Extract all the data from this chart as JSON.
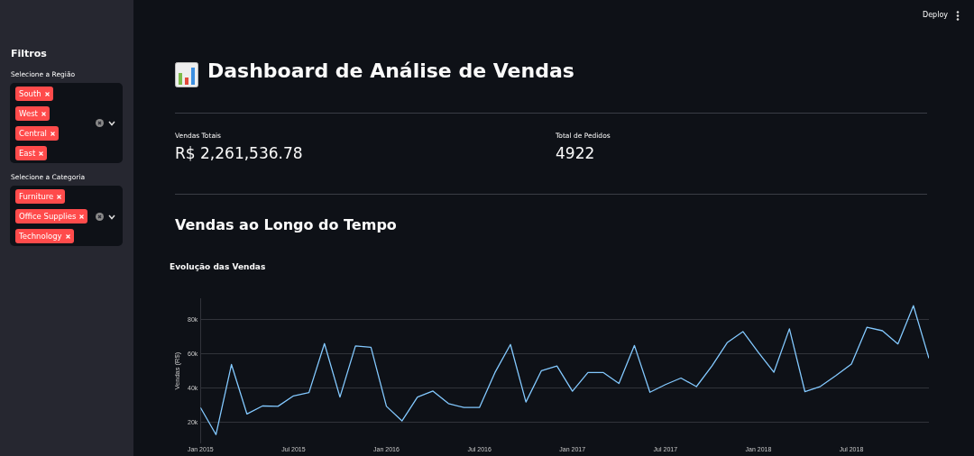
{
  "chart_data": {
    "type": "line",
    "title": "Evolução das Vendas",
    "subtitle": "Vendas ao Longo do Tempo",
    "ylabel": "Vendas (R$)",
    "annotations": [
      "Dashboard de Análise de Vendas",
      "Vendas Totais",
      "R$ 2,261,536.78",
      "Total de Pedidos",
      "4922",
      "Filtros",
      "Selecione a Região",
      "South",
      "West",
      "Central",
      "East",
      "Selecione a Categoria",
      "Furniture",
      "Office Supplies",
      "Technology",
      "Deploy"
    ],
    "x": [
      "2015-01",
      "2015-02",
      "2015-03",
      "2015-04",
      "2015-05",
      "2015-06",
      "2015-07",
      "2015-08",
      "2015-09",
      "2015-10",
      "2015-11",
      "2015-12",
      "2016-01",
      "2016-02",
      "2016-03",
      "2016-04",
      "2016-05",
      "2016-06",
      "2016-07",
      "2016-08",
      "2016-09",
      "2016-10",
      "2016-11",
      "2016-12",
      "2017-01",
      "2017-02",
      "2017-03",
      "2017-04",
      "2017-05",
      "2017-06",
      "2017-07",
      "2017-08",
      "2017-09",
      "2017-10",
      "2017-11",
      "2017-12",
      "2018-01",
      "2018-02",
      "2018-03",
      "2018-04",
      "2018-05",
      "2018-06",
      "2018-07",
      "2018-08",
      "2018-09",
      "2018-10",
      "2018-11",
      "2018-12"
    ],
    "series": [
      {
        "color": "#83c9ff",
        "values": [
          28700,
          12900,
          53800,
          24900,
          29600,
          29400,
          35500,
          37400,
          66000,
          34800,
          64600,
          63800,
          29400,
          20900,
          34800,
          38300,
          31000,
          28700,
          28700,
          49100,
          65500,
          31900,
          50200,
          52900,
          38200,
          49100,
          49100,
          42700,
          64900,
          37600,
          42100,
          45900,
          40900,
          52900,
          66700,
          73000,
          60800,
          49300,
          74600,
          38000,
          41000,
          47300,
          54100,
          75500,
          73500,
          65800,
          88100,
          57400
        ]
      }
    ],
    "xlim": [
      "2015-01",
      "2018-12"
    ],
    "xticks": [
      {
        "value": "2015-01",
        "label": "Jan 2015"
      },
      {
        "value": "2015-07",
        "label": "Jul 2015"
      },
      {
        "value": "2016-01",
        "label": "Jan 2016"
      },
      {
        "value": "2016-07",
        "label": "Jul 2016"
      },
      {
        "value": "2017-01",
        "label": "Jan 2017"
      },
      {
        "value": "2017-07",
        "label": "Jul 2017"
      },
      {
        "value": "2018-01",
        "label": "Jan 2018"
      },
      {
        "value": "2018-07",
        "label": "Jul 2018"
      }
    ],
    "ylim": [
      8000,
      92000
    ],
    "yticks": [
      {
        "value": 20000,
        "label": "20k"
      },
      {
        "value": 40000,
        "label": "40k"
      },
      {
        "value": 60000,
        "label": "60k"
      },
      {
        "value": 80000,
        "label": "80k"
      }
    ],
    "grid": "y",
    "legend": false,
    "marker": "none",
    "line_style": "solid"
  }
}
